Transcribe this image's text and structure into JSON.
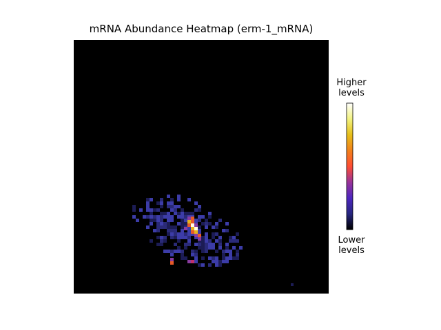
{
  "chart_data": {
    "type": "heatmap",
    "title": "mRNA Abundance Heatmap (erm-1_mRNA)",
    "xlabel": "",
    "ylabel": "",
    "colormap": "CMRmap",
    "colorbar": {
      "high_label": "Higher\nlevels",
      "low_label": "Lower\nlevels"
    },
    "grid": false,
    "background_color": "#000000",
    "colors": {
      "low": "#000000",
      "mid_low": "#3c3ca8",
      "mid": "#8a3ca0",
      "mid_high": "#e65a28",
      "high_orange": "#e6b41e",
      "high": "#ffffe6"
    }
  }
}
